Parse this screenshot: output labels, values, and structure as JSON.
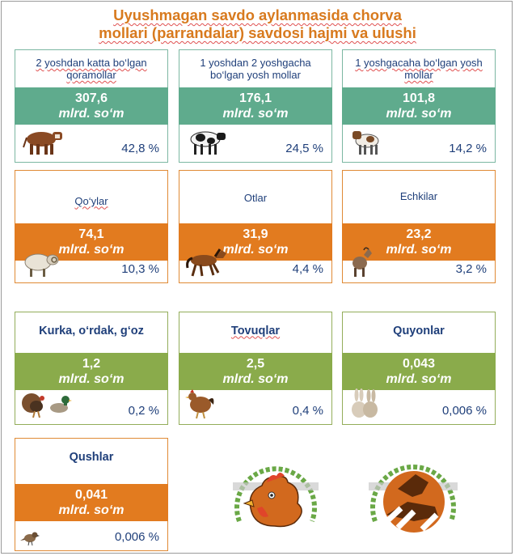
{
  "title": {
    "line1": "Uyushmagan savdo aylanmasida chorva",
    "line2": "mollari (parrandalar) savdosi hajmi va ulushi"
  },
  "unit": "mlrd. so‘m",
  "colors": {
    "teal": "#5fab8d",
    "orange": "#e27b1f",
    "green": "#8aab4b",
    "title": "#d87a1e",
    "text": "#1f3f7a"
  },
  "cards": [
    {
      "name": "2 yoshdan  katta bo‘lgan qoramollar",
      "value": "307,6",
      "percent": "42,8 %",
      "icon": "bull-icon"
    },
    {
      "name": "1 yoshdan  2 yoshgacha bo‘lgan yosh mollar",
      "value": "176,1",
      "percent": "24,5 %",
      "icon": "cow-icon"
    },
    {
      "name": "1 yoshgacaha bo‘lgan yosh mollar",
      "value": "101,8",
      "percent": "14,2 %",
      "icon": "calf-icon"
    },
    {
      "name": "Qo‘ylar",
      "value": "74,1",
      "percent": "10,3 %",
      "icon": "sheep-icon"
    },
    {
      "name": "Otlar",
      "value": "31,9",
      "percent": "4,4 %",
      "icon": "horse-icon"
    },
    {
      "name": "Echkilar",
      "value": "23,2",
      "percent": "3,2 %",
      "icon": "goat-icon"
    },
    {
      "name": "Kurka, o‘rdak, g‘oz",
      "value": "1,2",
      "percent": "0,2 %",
      "icon": "turkey-duck-icon"
    },
    {
      "name": "Tovuqlar",
      "value": "2,5",
      "percent": "0,4 %",
      "icon": "chicken-icon"
    },
    {
      "name": "Quyonlar",
      "value": "0,043",
      "percent": "0,006 %",
      "icon": "rabbit-icon"
    },
    {
      "name": "Qushlar",
      "value": "0,041",
      "percent": "0,006 %",
      "icon": "bird-icon"
    }
  ],
  "logos": [
    "rooster-logo-icon",
    "bull-logo-icon"
  ]
}
